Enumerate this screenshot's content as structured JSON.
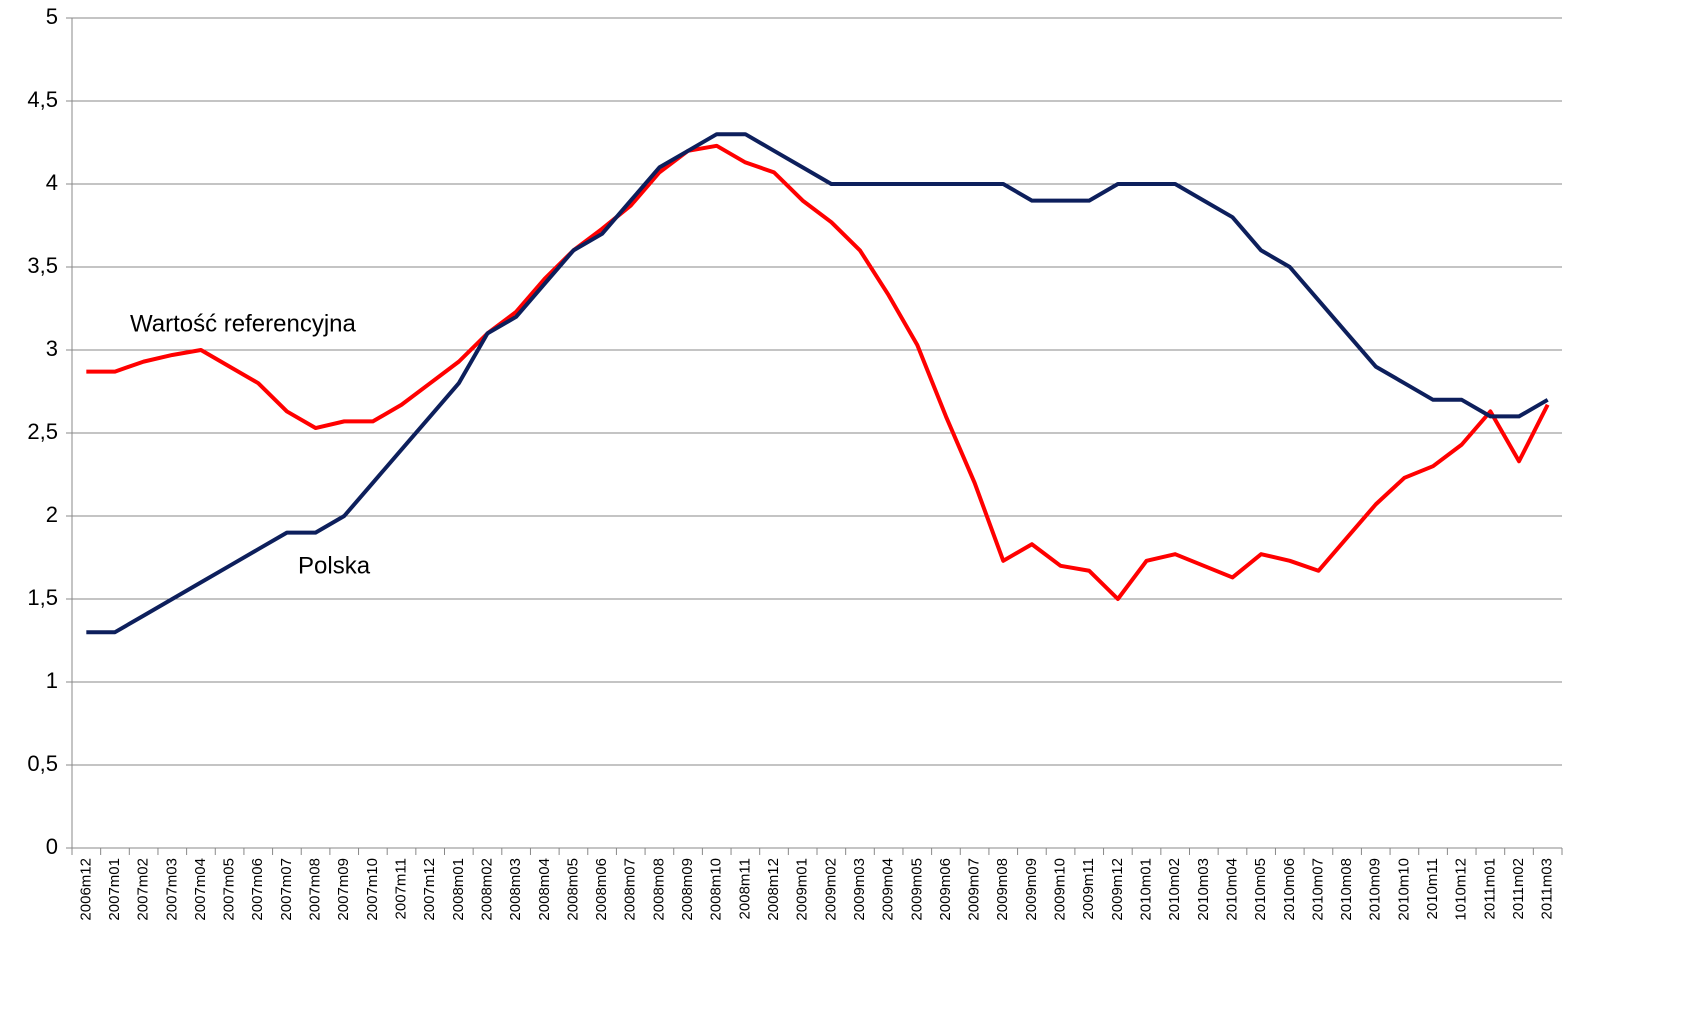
{
  "chart_data": {
    "type": "line",
    "categories": [
      "2006m12",
      "2007m01",
      "2007m02",
      "2007m03",
      "2007m04",
      "2007m05",
      "2007m06",
      "2007m07",
      "2007m08",
      "2007m09",
      "2007m10",
      "2007m11",
      "2007m12",
      "2008m01",
      "2008m02",
      "2008m03",
      "2008m04",
      "2008m05",
      "2008m06",
      "2008m07",
      "2008m08",
      "2008m09",
      "2008m10",
      "2008m11",
      "2008m12",
      "2009m01",
      "2009m02",
      "2009m03",
      "2009m04",
      "2009m05",
      "2009m06",
      "2009m07",
      "2009m08",
      "2009m09",
      "2009m10",
      "2009m11",
      "2009m12",
      "2010m01",
      "2010m02",
      "2010m03",
      "2010m04",
      "2010m05",
      "2010m06",
      "2010m07",
      "2010m08",
      "2010m09",
      "2010m10",
      "2010m11",
      "1010m12",
      "2011m01",
      "2011m02",
      "2011m03"
    ],
    "series": [
      {
        "name": "Wartość referencyjna",
        "color": "#ff0000",
        "values": [
          2.87,
          2.87,
          2.93,
          2.97,
          3.0,
          2.9,
          2.8,
          2.63,
          2.53,
          2.57,
          2.57,
          2.67,
          2.8,
          2.93,
          3.1,
          3.23,
          3.43,
          3.6,
          3.73,
          3.87,
          4.07,
          4.2,
          4.23,
          4.13,
          4.07,
          3.9,
          3.77,
          3.6,
          3.33,
          3.03,
          2.6,
          2.2,
          1.73,
          1.83,
          1.7,
          1.67,
          1.5,
          1.73,
          1.77,
          1.7,
          1.63,
          1.77,
          1.73,
          1.67,
          1.87,
          2.07,
          2.23,
          2.3,
          2.43,
          2.63,
          2.33,
          2.67
        ]
      },
      {
        "name": "Polska",
        "color": "#0d1f5c",
        "values": [
          1.3,
          1.3,
          1.4,
          1.5,
          1.6,
          1.7,
          1.8,
          1.9,
          1.9,
          2.0,
          2.2,
          2.4,
          2.6,
          2.8,
          3.1,
          3.2,
          3.4,
          3.6,
          3.7,
          3.9,
          4.1,
          4.2,
          4.3,
          4.3,
          4.2,
          4.1,
          4.0,
          4.0,
          4.0,
          4.0,
          4.0,
          4.0,
          4.0,
          3.9,
          3.9,
          3.9,
          4.0,
          4.0,
          4.0,
          3.9,
          3.8,
          3.6,
          3.5,
          3.3,
          3.1,
          2.9,
          2.8,
          2.7,
          2.7,
          2.6,
          2.6,
          2.7
        ]
      }
    ],
    "ylim": [
      0,
      5
    ],
    "yticks": [
      0,
      {
        "value": 0.5,
        "label": "0,5"
      },
      1,
      {
        "value": 1.5,
        "label": "1,5"
      },
      2,
      {
        "value": 2.5,
        "label": "2,5"
      },
      3,
      {
        "value": 3.5,
        "label": "3,5"
      },
      4,
      {
        "value": 4.5,
        "label": "4,5"
      },
      5
    ],
    "grid": true
  }
}
